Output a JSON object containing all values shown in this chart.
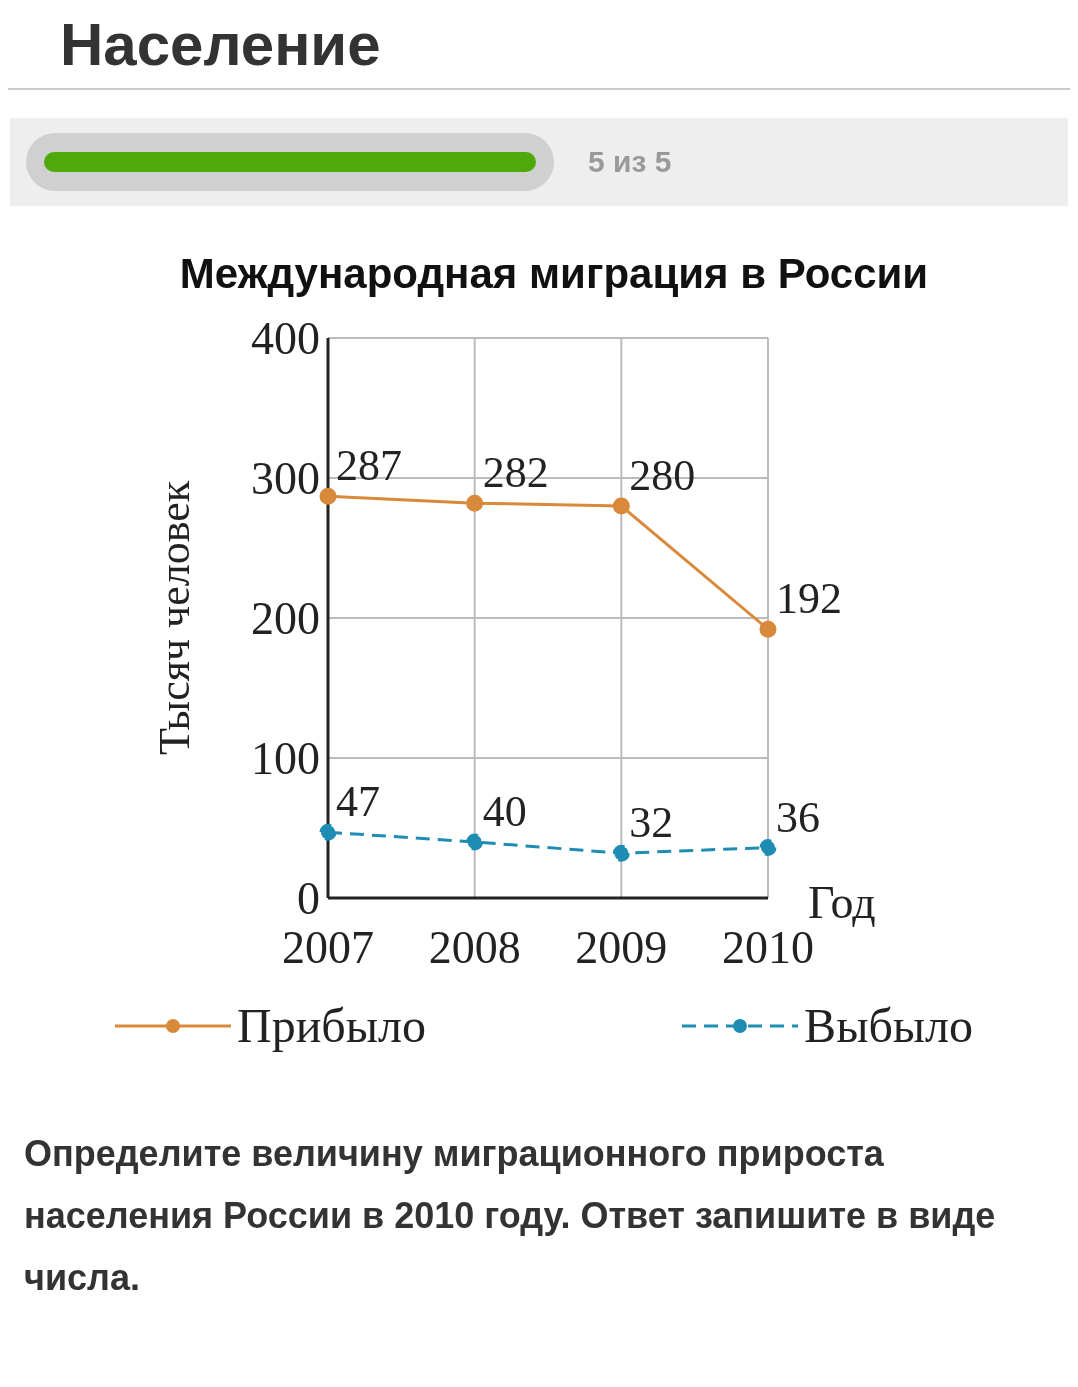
{
  "chart_data": {
    "type": "line",
    "title": "Международная миграция в России",
    "ylabel": "Тысяч человек",
    "xlabel": "Год",
    "annotations": [
      "Население",
      "5 из 5",
      "Определите величину миграционного прироста населения России в 2010 году. Ответ запишите в виде числа."
    ],
    "categories": [
      "2007",
      "2008",
      "2009",
      "2010"
    ],
    "series": [
      {
        "name": "Прибыло",
        "color": "#d9893a",
        "values": [
          287,
          282,
          280,
          192
        ],
        "line_style": "solid"
      },
      {
        "name": "Выбыло",
        "color": "#1f8db3",
        "values": [
          47,
          40,
          32,
          36
        ],
        "line_style": "dashed"
      }
    ],
    "ylim": [
      0,
      400
    ],
    "yticks": [
      0,
      100,
      200,
      300,
      400
    ],
    "grid": true,
    "legend": "bottom",
    "marker": "circle",
    "data_labels": true
  }
}
